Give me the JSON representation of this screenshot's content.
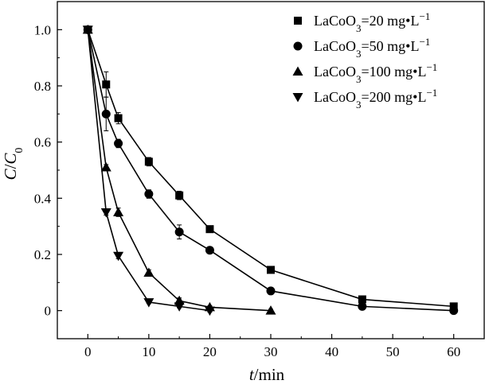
{
  "chart_data": {
    "type": "line",
    "title": "",
    "xlabel_var": "t",
    "xlabel_unit": "/min",
    "ylabel_var": "C",
    "ylabel_sep": "/",
    "ylabel_var2": "C",
    "ylabel_sub": "0",
    "xlim": [
      -5,
      65
    ],
    "ylim": [
      -0.1,
      1.1
    ],
    "xticks": [
      0,
      10,
      20,
      30,
      40,
      50,
      60
    ],
    "xtick_labels": [
      "0",
      "10",
      "20",
      "30",
      "40",
      "50",
      "60"
    ],
    "yticks": [
      0,
      0.2,
      0.4,
      0.6,
      0.8,
      1.0
    ],
    "ytick_labels": [
      "0",
      "0.2",
      "0.4",
      "0.6",
      "0.8",
      "1.0"
    ],
    "grid": false,
    "legend_position": "top-right",
    "series": [
      {
        "name": "LaCoO3=20 mg•L−1",
        "legend_base": "LaCoO",
        "legend_sub": "3",
        "legend_rest": "=20 mg•L",
        "legend_sup": "−1",
        "marker": "square",
        "x": [
          0,
          3,
          5,
          10,
          15,
          20,
          30,
          45,
          60
        ],
        "y": [
          1.0,
          0.805,
          0.685,
          0.53,
          0.41,
          0.29,
          0.145,
          0.04,
          0.015
        ],
        "err": [
          0,
          0.045,
          0.02,
          0.015,
          0.015,
          0.01,
          0.01,
          0.01,
          0.01
        ]
      },
      {
        "name": "LaCoO3=50 mg•L−1",
        "legend_base": "LaCoO",
        "legend_sub": "3",
        "legend_rest": "=50 mg•L",
        "legend_sup": "−1",
        "marker": "circle",
        "x": [
          0,
          3,
          5,
          10,
          15,
          20,
          30,
          45,
          60
        ],
        "y": [
          1.0,
          0.7,
          0.595,
          0.415,
          0.28,
          0.215,
          0.07,
          0.015,
          0.0
        ],
        "err": [
          0,
          0.06,
          0.015,
          0.015,
          0.025,
          0.01,
          0.01,
          0.01,
          0.005
        ]
      },
      {
        "name": "LaCoO3=100 mg•L−1",
        "legend_base": "LaCoO",
        "legend_sub": "3",
        "legend_rest": "=100 mg•L",
        "legend_sup": "−1",
        "marker": "triangle-up",
        "x": [
          0,
          3,
          5,
          10,
          15,
          20,
          30
        ],
        "y": [
          1.0,
          0.51,
          0.35,
          0.135,
          0.035,
          0.012,
          0.0
        ],
        "err": [
          0,
          0.01,
          0.015,
          0.01,
          0.01,
          0.005,
          0.005
        ]
      },
      {
        "name": "LaCoO3=200 mg•L−1",
        "legend_base": "LaCoO",
        "legend_sub": "3",
        "legend_rest": "=200 mg•L",
        "legend_sup": "−1",
        "marker": "triangle-down",
        "x": [
          0,
          3,
          5,
          10,
          15,
          20
        ],
        "y": [
          1.0,
          0.35,
          0.195,
          0.03,
          0.015,
          0.0
        ],
        "err": [
          0,
          0.01,
          0.01,
          0.005,
          0.005,
          0.005
        ]
      }
    ]
  }
}
